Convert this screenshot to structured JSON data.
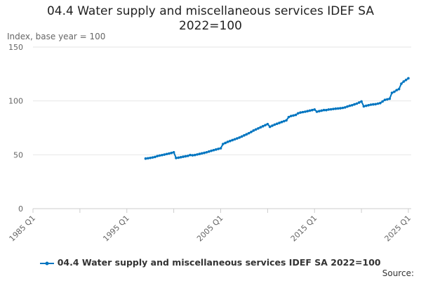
{
  "chart_data": {
    "type": "line",
    "title": "04.4 Water supply and miscellaneous services IDEF SA 2022=100",
    "ylabel": "Index, base year = 100",
    "xlabel": "",
    "ylim": [
      0,
      150
    ],
    "yticks": [
      0,
      50,
      100,
      150
    ],
    "xlim": [
      "1985 Q1",
      "2025 Q1"
    ],
    "xticks": [
      "1985 Q1",
      "1995 Q1",
      "2005 Q1",
      "2015 Q1",
      "2025 Q1"
    ],
    "grid": true,
    "legend_placement": "bottom",
    "series_color": "#0075c0",
    "series": [
      {
        "name": "04.4 Water supply and miscellaneous services IDEF SA 2022=100",
        "start": "1997 Q1",
        "frequency": "quarterly",
        "values": [
          46.5,
          46.8,
          47.1,
          47.5,
          48.0,
          48.8,
          49.3,
          49.7,
          50.2,
          50.7,
          51.2,
          51.7,
          52.3,
          47.0,
          47.3,
          47.7,
          48.2,
          48.6,
          49.0,
          49.8,
          49.5,
          49.8,
          50.3,
          50.8,
          51.3,
          51.8,
          52.3,
          53.0,
          53.7,
          54.3,
          54.9,
          55.5,
          56.0,
          60.0,
          61.0,
          62.0,
          62.8,
          63.6,
          64.4,
          65.2,
          66.0,
          67.0,
          68.0,
          69.0,
          70.0,
          71.2,
          72.5,
          73.5,
          74.5,
          75.5,
          76.5,
          77.5,
          78.5,
          76.0,
          77.0,
          78.0,
          78.8,
          79.6,
          80.4,
          81.2,
          82.0,
          85.0,
          86.0,
          86.5,
          87.0,
          88.5,
          89.2,
          89.6,
          90.0,
          90.5,
          91.0,
          91.5,
          92.0,
          90.0,
          90.5,
          91.0,
          91.5,
          91.5,
          92.0,
          92.2,
          92.5,
          92.8,
          93.0,
          93.2,
          93.5,
          94.0,
          94.8,
          95.5,
          96.0,
          96.8,
          97.5,
          98.5,
          99.5,
          95.0,
          95.5,
          96.0,
          96.5,
          96.8,
          97.0,
          97.5,
          98.0,
          99.5,
          101.0,
          101.5,
          102.0,
          107.5,
          108.5,
          110.0,
          111.0,
          116.0,
          118.0,
          119.5,
          121.0
        ]
      }
    ],
    "source_label": "Source:"
  }
}
